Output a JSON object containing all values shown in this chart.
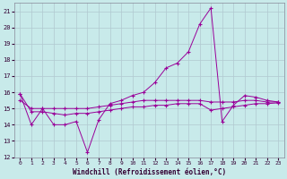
{
  "xlabel": "Windchill (Refroidissement éolien,°C)",
  "bg_color": "#c8eaea",
  "grid_color": "#b0c8d0",
  "line_color": "#990099",
  "xlim": [
    -0.5,
    23.5
  ],
  "ylim": [
    12,
    21.5
  ],
  "xticks": [
    0,
    1,
    2,
    3,
    4,
    5,
    6,
    7,
    8,
    9,
    10,
    11,
    12,
    13,
    14,
    15,
    16,
    17,
    18,
    19,
    20,
    21,
    22,
    23
  ],
  "yticks": [
    12,
    13,
    14,
    15,
    16,
    17,
    18,
    19,
    20,
    21
  ],
  "line1_x": [
    0,
    1,
    2,
    3,
    4,
    5,
    6,
    7,
    8,
    9,
    10,
    11,
    12,
    13,
    14,
    15,
    16,
    17,
    18,
    19,
    20,
    21,
    22,
    23
  ],
  "line1_y": [
    15.9,
    14.0,
    15.0,
    14.0,
    14.0,
    14.2,
    12.3,
    14.3,
    15.3,
    15.5,
    15.8,
    16.0,
    16.6,
    17.5,
    17.8,
    18.5,
    20.2,
    21.2,
    14.2,
    15.2,
    15.8,
    15.7,
    15.5,
    15.4
  ],
  "line2_x": [
    0,
    1,
    2,
    3,
    4,
    5,
    6,
    7,
    8,
    9,
    10,
    11,
    12,
    13,
    14,
    15,
    16,
    17,
    18,
    19,
    20,
    21,
    22,
    23
  ],
  "line2_y": [
    15.5,
    15.0,
    15.0,
    15.0,
    15.0,
    15.0,
    15.0,
    15.1,
    15.2,
    15.3,
    15.4,
    15.5,
    15.5,
    15.5,
    15.5,
    15.5,
    15.5,
    15.4,
    15.4,
    15.4,
    15.5,
    15.5,
    15.4,
    15.4
  ],
  "line3_x": [
    0,
    1,
    2,
    3,
    4,
    5,
    6,
    7,
    8,
    9,
    10,
    11,
    12,
    13,
    14,
    15,
    16,
    17,
    18,
    19,
    20,
    21,
    22,
    23
  ],
  "line3_y": [
    15.9,
    14.8,
    14.8,
    14.7,
    14.6,
    14.7,
    14.7,
    14.8,
    14.9,
    15.0,
    15.1,
    15.1,
    15.2,
    15.2,
    15.3,
    15.3,
    15.3,
    14.9,
    15.0,
    15.1,
    15.2,
    15.3,
    15.3,
    15.35
  ]
}
